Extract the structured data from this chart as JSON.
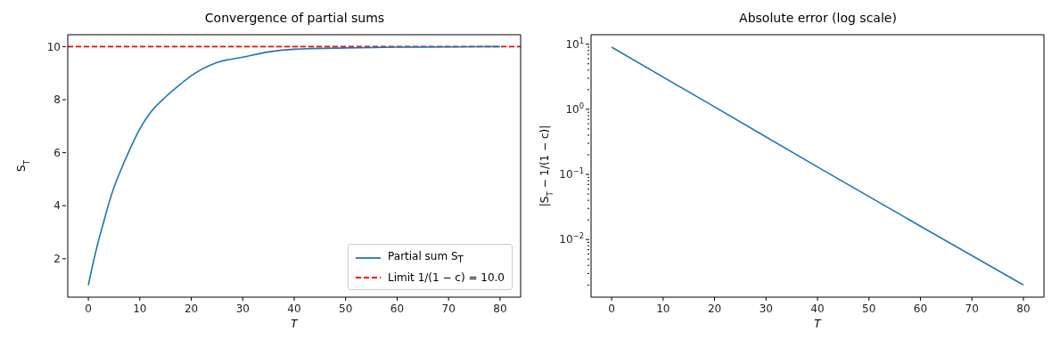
{
  "chart_data": [
    {
      "type": "line",
      "title": "Convergence of partial sums",
      "xlabel": "T",
      "ylabel": "S$_{T}$",
      "x": [
        0,
        1,
        2,
        3,
        4,
        5,
        6,
        8,
        10,
        12,
        15,
        18,
        20,
        25,
        30,
        35,
        40,
        50,
        60,
        70,
        80
      ],
      "series": [
        {
          "name": "Partial sum S$_{T}$",
          "color": "#1f77b4",
          "values": [
            1.0,
            1.9,
            2.7,
            3.4,
            4.1,
            4.7,
            5.2,
            6.1,
            6.9,
            7.5,
            8.1,
            8.6,
            8.9,
            9.4,
            9.6,
            9.8,
            9.9,
            9.95,
            9.98,
            9.99,
            10.0
          ]
        }
      ],
      "ref_lines": [
        {
          "axis": "y",
          "value": 10.0,
          "label": "Limit 1/(1 − c) = 10.0",
          "color": "#ff0000",
          "line_style": "dashed"
        }
      ],
      "xlim": [
        -4,
        84
      ],
      "xticks": [
        0,
        10,
        20,
        30,
        40,
        50,
        60,
        70,
        80
      ],
      "ylim": [
        0.55,
        10.45
      ],
      "yticks": [
        2,
        4,
        6,
        8,
        10
      ],
      "marker": "none",
      "legend": "bottom right"
    },
    {
      "type": "line",
      "title": "Absolute error (log scale)",
      "xlabel": "T",
      "ylabel": "|S$_{T}$ − 1/(1 − c)|",
      "x": [
        0,
        20,
        40,
        60,
        80
      ],
      "series": [
        {
          "color": "#1f77b4",
          "values": [
            9.0,
            1.09,
            0.13,
            0.016,
            0.002
          ]
        }
      ],
      "xlim": [
        -4,
        84
      ],
      "xticks": [
        0,
        10,
        20,
        30,
        40,
        50,
        60,
        70,
        80
      ],
      "ylim": [
        0.0013,
        14
      ],
      "log": "y",
      "yticks": [
        {
          "value": 0.002,
          "label": null
        },
        {
          "value": 0.003,
          "label": null
        },
        {
          "value": 0.004,
          "label": null
        },
        {
          "value": 0.005,
          "label": null
        },
        {
          "value": 0.006,
          "label": null
        },
        {
          "value": 0.007,
          "label": null
        },
        {
          "value": 0.008,
          "label": null
        },
        {
          "value": 0.009,
          "label": null
        },
        {
          "value": 0.01,
          "label": "10$^{−2}$"
        },
        {
          "value": 0.02,
          "label": null
        },
        {
          "value": 0.03,
          "label": null
        },
        {
          "value": 0.04,
          "label": null
        },
        {
          "value": 0.05,
          "label": null
        },
        {
          "value": 0.06,
          "label": null
        },
        {
          "value": 0.07,
          "label": null
        },
        {
          "value": 0.08,
          "label": null
        },
        {
          "value": 0.09,
          "label": null
        },
        {
          "value": 0.1,
          "label": "10$^{−1}$"
        },
        {
          "value": 0.2,
          "label": null
        },
        {
          "value": 0.3,
          "label": null
        },
        {
          "value": 0.4,
          "label": null
        },
        {
          "value": 0.5,
          "label": null
        },
        {
          "value": 0.6,
          "label": null
        },
        {
          "value": 0.7,
          "label": null
        },
        {
          "value": 0.8,
          "label": null
        },
        {
          "value": 0.9,
          "label": null
        },
        {
          "value": 1,
          "label": "10$^{0}$"
        },
        {
          "value": 2,
          "label": null
        },
        {
          "value": 3,
          "label": null
        },
        {
          "value": 4,
          "label": null
        },
        {
          "value": 5,
          "label": null
        },
        {
          "value": 6,
          "label": null
        },
        {
          "value": 7,
          "label": null
        },
        {
          "value": 8,
          "label": null
        },
        {
          "value": 9,
          "label": null
        },
        {
          "value": 10,
          "label": "10$^{1}$"
        }
      ],
      "marker": "none",
      "legend": false
    }
  ]
}
